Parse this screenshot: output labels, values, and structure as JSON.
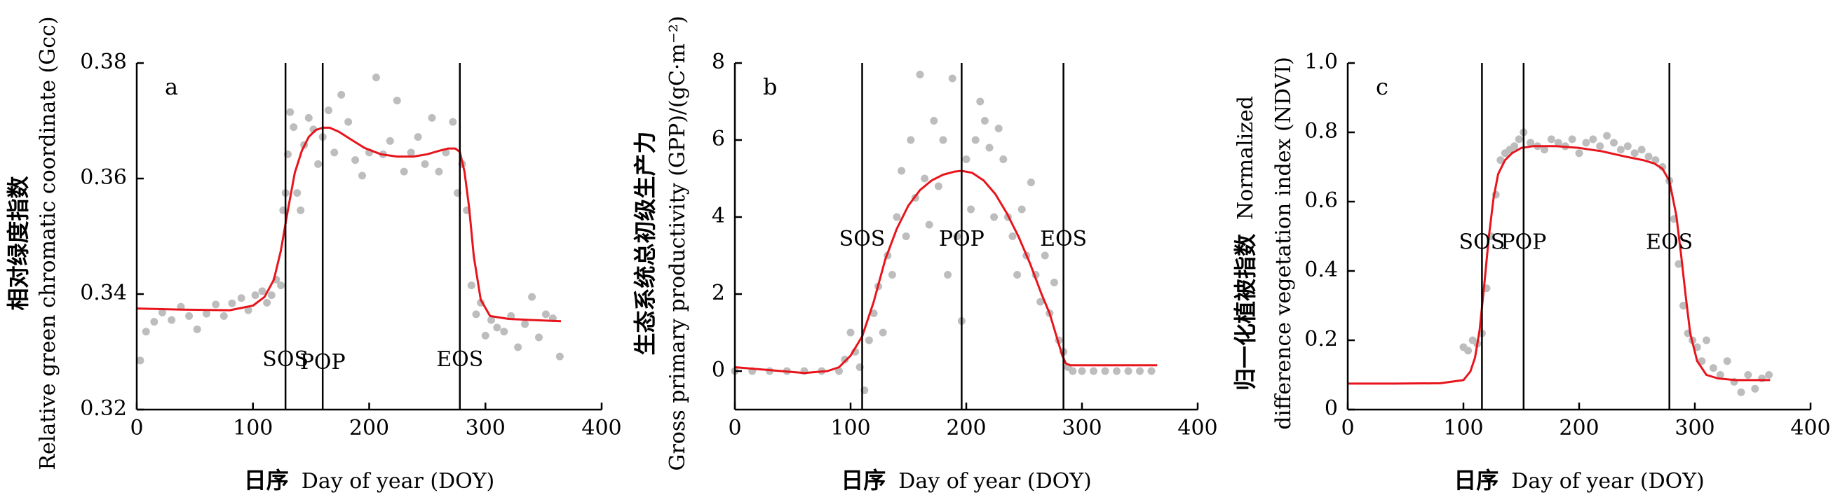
{
  "colors": {
    "points": "#bdbdbd",
    "curve": "#e8141c",
    "axis": "#000000",
    "event_line": "#000000"
  },
  "chart_data": [
    {
      "type": "scatter",
      "panel_label": "a",
      "ylabel_cn": "相对绿度指数",
      "ylabel": "Relative green chromatic coordinate (Gcc)",
      "xlabel_cn": "日序",
      "xlabel": "Day of year (DOY)",
      "xlim": [
        0,
        400
      ],
      "ylim": [
        0.32,
        0.38
      ],
      "xticks": [
        "0",
        "100",
        "200",
        "300",
        "400"
      ],
      "yticks": [
        "0.32",
        "0.34",
        "0.36",
        "0.38"
      ],
      "events": [
        {
          "label": "SOS",
          "x": 128,
          "label_y": 0.3285
        },
        {
          "label": "POP",
          "x": 160,
          "label_y": 0.328
        },
        {
          "label": "EOS",
          "x": 278,
          "label_y": 0.3285
        }
      ],
      "scatter_series": {
        "x": [
          3,
          8,
          15,
          22,
          30,
          38,
          45,
          52,
          60,
          68,
          75,
          82,
          90,
          96,
          102,
          108,
          112,
          116,
          120,
          124,
          126,
          128,
          130,
          132,
          135,
          138,
          141,
          144,
          148,
          152,
          156,
          160,
          165,
          170,
          176,
          182,
          188,
          194,
          200,
          206,
          212,
          218,
          224,
          230,
          236,
          242,
          248,
          254,
          260,
          266,
          272,
          276,
          280,
          284,
          288,
          292,
          296,
          300,
          305,
          310,
          316,
          322,
          328,
          334,
          340,
          346,
          352,
          358,
          364
        ],
        "y": [
          0.3285,
          0.3335,
          0.3352,
          0.3368,
          0.3355,
          0.3378,
          0.3362,
          0.3339,
          0.3366,
          0.3382,
          0.3362,
          0.3384,
          0.3393,
          0.3372,
          0.3398,
          0.3405,
          0.3385,
          0.3398,
          0.3425,
          0.3415,
          0.3545,
          0.3575,
          0.3642,
          0.3715,
          0.3689,
          0.3575,
          0.3545,
          0.3658,
          0.3705,
          0.3685,
          0.3625,
          0.3672,
          0.3718,
          0.3645,
          0.3745,
          0.3698,
          0.3632,
          0.3605,
          0.3645,
          0.3775,
          0.3642,
          0.3665,
          0.3735,
          0.3612,
          0.3645,
          0.3672,
          0.3625,
          0.3705,
          0.3612,
          0.3645,
          0.3698,
          0.3575,
          0.3625,
          0.3545,
          0.3415,
          0.3365,
          0.3385,
          0.3328,
          0.3355,
          0.3342,
          0.3335,
          0.3362,
          0.3308,
          0.3348,
          0.3395,
          0.3325,
          0.3365,
          0.3358,
          0.3292
        ]
      },
      "fit_curve": {
        "x": [
          0,
          40,
          80,
          100,
          110,
          118,
          124,
          130,
          136,
          142,
          148,
          154,
          160,
          166,
          174,
          184,
          196,
          210,
          224,
          238,
          250,
          260,
          268,
          274,
          278,
          282,
          286,
          290,
          296,
          304,
          320,
          340,
          365
        ],
        "y": [
          0.3375,
          0.3373,
          0.3372,
          0.338,
          0.3395,
          0.3425,
          0.3475,
          0.3545,
          0.361,
          0.3648,
          0.3672,
          0.3684,
          0.3688,
          0.3688,
          0.3681,
          0.3668,
          0.3653,
          0.3642,
          0.3638,
          0.3638,
          0.3642,
          0.3648,
          0.3652,
          0.3652,
          0.3646,
          0.3612,
          0.355,
          0.3465,
          0.339,
          0.3362,
          0.3357,
          0.3355,
          0.3353
        ]
      }
    },
    {
      "type": "scatter",
      "panel_label": "b",
      "ylabel_cn": "生态系统总初级生产力",
      "ylabel": "Gross primary productivity (GPP)/(gC·m⁻²)",
      "xlabel_cn": "日序",
      "xlabel": "Day of year (DOY)",
      "xlim": [
        0,
        400
      ],
      "ylim": [
        -1,
        8
      ],
      "xticks": [
        "0",
        "100",
        "200",
        "300",
        "400"
      ],
      "yticks": [
        "0",
        "2",
        "4",
        "6",
        "8"
      ],
      "events": [
        {
          "label": "SOS",
          "x": 110,
          "label_y": 3.4
        },
        {
          "label": "POP",
          "x": 196,
          "label_y": 3.4
        },
        {
          "label": "EOS",
          "x": 284,
          "label_y": 3.4
        }
      ],
      "scatter_series": {
        "x": [
          0,
          15,
          30,
          45,
          60,
          75,
          90,
          95,
          100,
          104,
          108,
          112,
          116,
          120,
          124,
          128,
          132,
          136,
          140,
          144,
          148,
          152,
          156,
          160,
          164,
          168,
          172,
          176,
          180,
          184,
          188,
          192,
          196,
          200,
          204,
          208,
          212,
          216,
          220,
          224,
          228,
          232,
          236,
          240,
          244,
          248,
          252,
          256,
          260,
          264,
          268,
          272,
          276,
          280,
          284,
          288,
          292,
          300,
          310,
          320,
          330,
          340,
          350,
          360
        ],
        "y": [
          0.0,
          0.0,
          0.0,
          0.0,
          0.0,
          0.0,
          0.0,
          0.3,
          1.0,
          0.5,
          0.1,
          -0.5,
          0.8,
          1.5,
          2.2,
          1.0,
          3.0,
          2.5,
          4.0,
          5.2,
          3.5,
          6.0,
          4.5,
          7.7,
          5.0,
          3.8,
          6.5,
          4.8,
          6.0,
          2.5,
          7.6,
          3.5,
          1.3,
          5.5,
          4.2,
          6.0,
          7.0,
          6.5,
          5.8,
          4.0,
          6.3,
          5.5,
          4.0,
          3.5,
          2.5,
          4.2,
          3.0,
          4.9,
          2.5,
          1.8,
          3.0,
          1.5,
          2.3,
          0.8,
          0.5,
          0.1,
          0.0,
          0.0,
          0.0,
          0.0,
          0.0,
          0.0,
          0.0,
          0.0
        ]
      },
      "fit_curve": {
        "x": [
          0,
          20,
          40,
          60,
          80,
          90,
          100,
          110,
          120,
          130,
          140,
          150,
          160,
          170,
          180,
          190,
          196,
          205,
          215,
          225,
          235,
          245,
          255,
          265,
          272,
          278,
          283,
          286,
          290,
          300,
          320,
          340,
          365
        ],
        "y": [
          0.1,
          0.05,
          0.0,
          -0.05,
          0.0,
          0.1,
          0.4,
          0.9,
          1.8,
          2.9,
          3.7,
          4.3,
          4.7,
          4.95,
          5.1,
          5.18,
          5.2,
          5.15,
          4.95,
          4.6,
          4.1,
          3.5,
          2.8,
          2.0,
          1.5,
          0.9,
          0.4,
          0.2,
          0.15,
          0.15,
          0.15,
          0.15,
          0.15
        ]
      }
    },
    {
      "type": "scatter",
      "panel_label": "c",
      "ylabel_cn": "归一化植被指数",
      "ylabel": "Normalized difference vegetation index (NDVI)",
      "xlabel_cn": "日序",
      "xlabel": "Day of year (DOY)",
      "xlim": [
        0,
        400
      ],
      "ylim": [
        0,
        1.0
      ],
      "xticks": [
        "0",
        "100",
        "200",
        "300",
        "400"
      ],
      "yticks": [
        "0",
        "0.2",
        "0.4",
        "0.6",
        "0.8",
        "1.0"
      ],
      "events": [
        {
          "label": "SOS",
          "x": 116,
          "label_y": 0.48
        },
        {
          "label": "POP",
          "x": 152,
          "label_y": 0.48
        },
        {
          "label": "EOS",
          "x": 278,
          "label_y": 0.48
        }
      ],
      "scatter_series": {
        "x": [
          100,
          104,
          108,
          112,
          116,
          120,
          124,
          128,
          132,
          136,
          140,
          144,
          148,
          152,
          158,
          164,
          170,
          176,
          182,
          188,
          194,
          200,
          206,
          212,
          218,
          224,
          230,
          236,
          242,
          248,
          254,
          260,
          266,
          272,
          278,
          282,
          286,
          290,
          294,
          298,
          302,
          306,
          310,
          316,
          322,
          328,
          334,
          340,
          346,
          352,
          358,
          364
        ],
        "y": [
          0.18,
          0.17,
          0.2,
          0.19,
          0.22,
          0.35,
          0.5,
          0.62,
          0.72,
          0.74,
          0.75,
          0.76,
          0.78,
          0.8,
          0.77,
          0.76,
          0.75,
          0.78,
          0.77,
          0.76,
          0.78,
          0.74,
          0.77,
          0.78,
          0.76,
          0.79,
          0.77,
          0.75,
          0.76,
          0.74,
          0.75,
          0.73,
          0.72,
          0.7,
          0.66,
          0.55,
          0.42,
          0.3,
          0.22,
          0.2,
          0.18,
          0.14,
          0.2,
          0.12,
          0.1,
          0.14,
          0.08,
          0.05,
          0.1,
          0.06,
          0.09,
          0.1
        ]
      },
      "fit_curve": {
        "x": [
          0,
          40,
          80,
          100,
          106,
          110,
          114,
          118,
          122,
          126,
          130,
          136,
          142,
          150,
          160,
          180,
          200,
          220,
          240,
          255,
          265,
          272,
          278,
          284,
          288,
          292,
          296,
          302,
          310,
          320,
          335,
          350,
          365
        ],
        "y": [
          0.075,
          0.075,
          0.076,
          0.085,
          0.11,
          0.15,
          0.23,
          0.36,
          0.5,
          0.61,
          0.68,
          0.72,
          0.74,
          0.755,
          0.76,
          0.76,
          0.755,
          0.745,
          0.73,
          0.72,
          0.71,
          0.695,
          0.66,
          0.56,
          0.45,
          0.33,
          0.22,
          0.14,
          0.1,
          0.09,
          0.085,
          0.085,
          0.085
        ]
      }
    }
  ]
}
